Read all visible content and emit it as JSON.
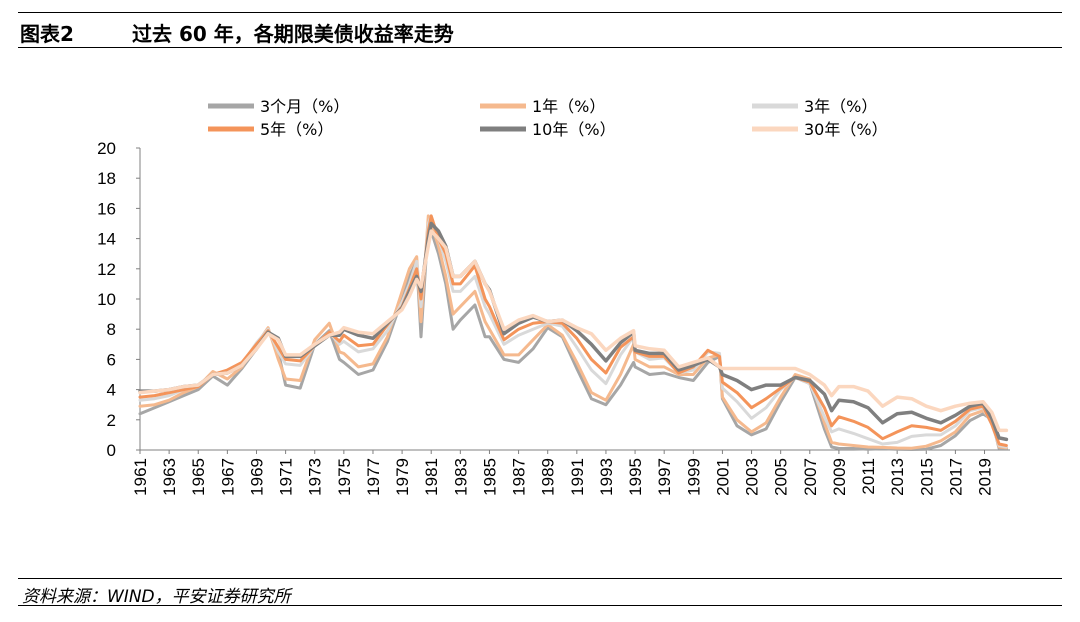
{
  "header": {
    "figure_label": "图表2",
    "title": "过去 60 年，各期限美债收益率走势"
  },
  "footer": {
    "source": "资料来源：WIND，平安证券研究所"
  },
  "chart_data": {
    "type": "line",
    "title": "过去 60 年，各期限美债收益率走势",
    "xlabel": "",
    "ylabel": "",
    "xlim": [
      1961,
      2020.75
    ],
    "ylim": [
      0,
      20
    ],
    "yticks": [
      0,
      2,
      4,
      6,
      8,
      10,
      12,
      14,
      16,
      18,
      20
    ],
    "xticks": [
      "1961",
      "1963",
      "1965",
      "1967",
      "1969",
      "1971",
      "1973",
      "1975",
      "1977",
      "1979",
      "1981",
      "1983",
      "1985",
      "1987",
      "1989",
      "1991",
      "1993",
      "1995",
      "1997",
      "1999",
      "2001",
      "2003",
      "2005",
      "2007",
      "2009",
      "2011",
      "2013",
      "2015",
      "2017",
      "2019"
    ],
    "legend_position": "top",
    "x": [
      1961,
      1962,
      1963,
      1964,
      1965,
      1966,
      1967,
      1968,
      1969,
      1969.8,
      1970.5,
      1971,
      1972,
      1973,
      1974,
      1974.7,
      1975,
      1976,
      1977,
      1978,
      1979,
      1979.5,
      1980,
      1980.3,
      1980.8,
      1981,
      1981.5,
      1982,
      1982.5,
      1983,
      1984,
      1984.7,
      1985,
      1986,
      1987,
      1988,
      1989,
      1990,
      1991,
      1992,
      1993,
      1994,
      1994.9,
      1995,
      1996,
      1997,
      1998,
      1999,
      2000,
      2000.8,
      2001,
      2002,
      2003,
      2004,
      2005,
      2006,
      2007,
      2008,
      2008.5,
      2009,
      2010,
      2011,
      2012,
      2013,
      2014,
      2015,
      2016,
      2017,
      2018,
      2018.9,
      2019.5,
      2020,
      2020.5
    ],
    "series": [
      {
        "name": "3个月（%）",
        "color": "#a6a6a6",
        "width": 3,
        "values": [
          2.4,
          2.8,
          3.2,
          3.6,
          4.0,
          4.9,
          4.3,
          5.4,
          6.7,
          7.9,
          6.5,
          4.3,
          4.1,
          7.0,
          7.9,
          6.0,
          5.8,
          5.0,
          5.3,
          7.2,
          10.0,
          11.5,
          12.5,
          7.5,
          15.0,
          14.5,
          13.0,
          11.0,
          8.0,
          8.6,
          9.6,
          7.5,
          7.5,
          6.0,
          5.8,
          6.7,
          8.1,
          7.5,
          5.4,
          3.4,
          3.0,
          4.3,
          5.8,
          5.5,
          5.0,
          5.1,
          4.8,
          4.6,
          5.8,
          6.2,
          3.4,
          1.6,
          1.0,
          1.4,
          3.2,
          4.8,
          4.4,
          1.4,
          0.2,
          0.1,
          0.1,
          0.05,
          0.08,
          0.05,
          0.03,
          0.05,
          0.3,
          0.95,
          1.95,
          2.4,
          2.0,
          0.1,
          0.1
        ]
      },
      {
        "name": "1年（%）",
        "color": "#f5b98e",
        "width": 3,
        "values": [
          2.9,
          3.0,
          3.3,
          3.8,
          4.2,
          5.2,
          4.7,
          5.5,
          7.0,
          8.1,
          6.0,
          4.7,
          4.6,
          7.3,
          8.4,
          6.5,
          6.4,
          5.5,
          5.7,
          7.5,
          10.5,
          12.0,
          12.8,
          8.5,
          15.5,
          15.0,
          13.5,
          11.5,
          9.0,
          9.5,
          10.5,
          8.5,
          8.0,
          6.3,
          6.3,
          7.3,
          8.3,
          7.6,
          5.8,
          3.8,
          3.3,
          5.0,
          7.0,
          6.0,
          5.5,
          5.5,
          5.0,
          5.0,
          6.1,
          6.3,
          3.5,
          2.0,
          1.2,
          1.8,
          3.5,
          5.0,
          4.7,
          1.8,
          0.5,
          0.4,
          0.3,
          0.2,
          0.17,
          0.13,
          0.12,
          0.25,
          0.6,
          1.2,
          2.3,
          2.6,
          2.0,
          0.2,
          0.15
        ]
      },
      {
        "name": "3年（%）",
        "color": "#d9d9d9",
        "width": 3,
        "values": [
          3.3,
          3.4,
          3.6,
          4.0,
          4.2,
          5.0,
          5.1,
          5.7,
          7.1,
          8.0,
          6.5,
          5.7,
          5.6,
          6.9,
          7.8,
          7.0,
          7.2,
          6.5,
          6.7,
          7.9,
          9.8,
          11.0,
          12.5,
          9.5,
          15.0,
          15.5,
          14.0,
          12.5,
          10.5,
          10.5,
          11.5,
          9.5,
          9.0,
          7.0,
          7.6,
          8.0,
          8.4,
          8.2,
          6.8,
          5.3,
          4.4,
          6.3,
          7.5,
          6.5,
          6.0,
          6.1,
          5.1,
          5.3,
          6.5,
          6.4,
          4.1,
          3.2,
          2.1,
          2.8,
          4.0,
          4.8,
          4.4,
          2.2,
          1.2,
          1.4,
          1.1,
          0.75,
          0.4,
          0.5,
          0.9,
          1.0,
          1.0,
          1.6,
          2.6,
          2.8,
          1.7,
          0.3,
          0.2
        ]
      },
      {
        "name": "5年（%）",
        "color": "#f4945a",
        "width": 3,
        "values": [
          3.5,
          3.6,
          3.8,
          4.0,
          4.2,
          5.0,
          5.3,
          5.8,
          7.0,
          7.9,
          6.8,
          6.0,
          5.9,
          6.9,
          7.8,
          7.2,
          7.6,
          6.9,
          7.0,
          8.3,
          9.5,
          10.7,
          12.0,
          10.0,
          14.5,
          15.5,
          14.0,
          13.0,
          11.0,
          11.0,
          12.2,
          10.0,
          9.5,
          7.3,
          8.0,
          8.4,
          8.5,
          8.4,
          7.4,
          6.0,
          5.1,
          6.8,
          7.5,
          6.5,
          6.2,
          6.2,
          5.1,
          5.5,
          6.6,
          6.2,
          4.5,
          3.8,
          2.8,
          3.4,
          4.1,
          4.8,
          4.5,
          2.8,
          1.6,
          2.2,
          1.9,
          1.5,
          0.75,
          1.2,
          1.6,
          1.5,
          1.3,
          1.9,
          2.7,
          2.9,
          1.7,
          0.4,
          0.3
        ]
      },
      {
        "name": "10年（%）",
        "color": "#7f7f7f",
        "width": 3.5,
        "values": [
          3.9,
          3.9,
          4.0,
          4.2,
          4.3,
          5.0,
          5.1,
          5.6,
          6.7,
          7.8,
          7.4,
          6.2,
          6.2,
          6.9,
          7.6,
          7.6,
          8.0,
          7.6,
          7.4,
          8.4,
          9.4,
          10.5,
          11.5,
          10.5,
          14.0,
          15.0,
          14.5,
          13.5,
          11.5,
          11.5,
          12.5,
          11.0,
          10.6,
          7.7,
          8.4,
          8.8,
          8.5,
          8.6,
          7.9,
          7.0,
          5.9,
          7.1,
          7.8,
          6.6,
          6.4,
          6.4,
          5.3,
          5.6,
          6.0,
          5.5,
          5.0,
          4.6,
          4.0,
          4.3,
          4.3,
          4.8,
          4.6,
          3.7,
          2.6,
          3.3,
          3.2,
          2.8,
          1.8,
          2.4,
          2.5,
          2.1,
          1.8,
          2.3,
          2.9,
          3.1,
          2.1,
          0.8,
          0.7
        ]
      },
      {
        "name": "30年（%）",
        "color": "#fbd7bf",
        "width": 3.5,
        "values": [
          3.8,
          3.9,
          4.0,
          4.2,
          4.3,
          5.0,
          5.1,
          5.6,
          6.7,
          7.7,
          7.3,
          6.3,
          6.3,
          7.0,
          7.6,
          7.8,
          8.1,
          7.8,
          7.7,
          8.5,
          9.3,
          10.2,
          11.3,
          10.8,
          13.5,
          14.5,
          14.0,
          13.4,
          11.5,
          11.5,
          12.5,
          11.0,
          10.5,
          8.0,
          8.6,
          8.9,
          8.5,
          8.6,
          8.1,
          7.7,
          6.6,
          7.4,
          7.9,
          6.9,
          6.7,
          6.6,
          5.5,
          5.8,
          6.1,
          5.5,
          5.4,
          5.4,
          5.4,
          5.4,
          5.4,
          5.4,
          5.0,
          4.3,
          3.6,
          4.2,
          4.2,
          3.9,
          2.9,
          3.5,
          3.4,
          2.9,
          2.6,
          2.9,
          3.1,
          3.2,
          2.5,
          1.3,
          1.3
        ]
      }
    ]
  }
}
